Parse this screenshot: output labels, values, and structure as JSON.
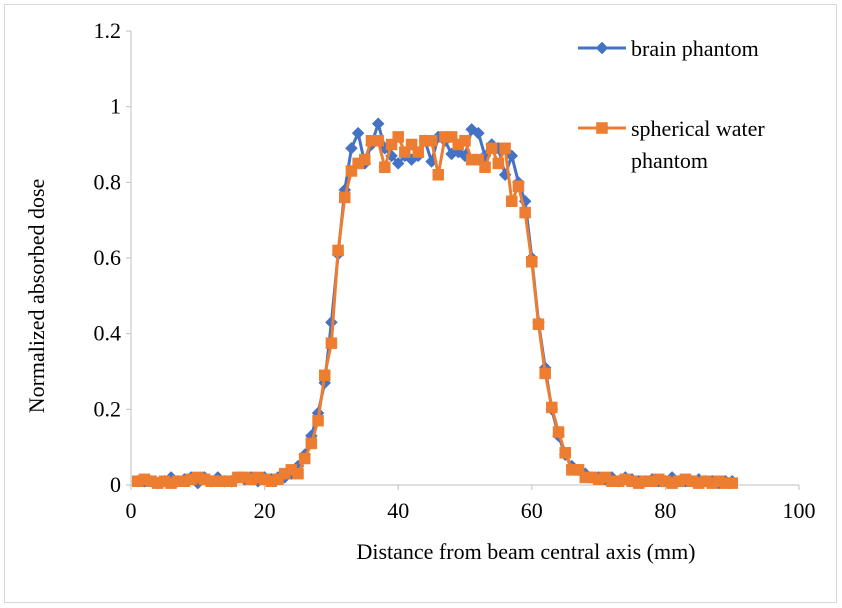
{
  "chart_data": {
    "type": "line",
    "title": "",
    "xlabel": "Distance from beam central axis (mm)",
    "ylabel": "Normalized absorbed dose",
    "xlim": [
      0,
      100
    ],
    "ylim": [
      0,
      1.2
    ],
    "xticks": [
      "0",
      "20",
      "40",
      "60",
      "80",
      "100"
    ],
    "yticks": [
      "0",
      "0.2",
      "0.4",
      "0.6",
      "0.8",
      "1",
      "1.2"
    ],
    "grid": false,
    "legend_position": "top-right",
    "series": [
      {
        "name": "brain phantom",
        "color": "#4472C4",
        "marker": "diamond",
        "points": [
          [
            1,
            0.01
          ],
          [
            2,
            0.01
          ],
          [
            3,
            0.01
          ],
          [
            4,
            0.005
          ],
          [
            5,
            0.01
          ],
          [
            6,
            0.02
          ],
          [
            7,
            0.01
          ],
          [
            8,
            0.015
          ],
          [
            9,
            0.02
          ],
          [
            10,
            0.005
          ],
          [
            11,
            0.02
          ],
          [
            12,
            0.01
          ],
          [
            13,
            0.02
          ],
          [
            14,
            0.01
          ],
          [
            15,
            0.01
          ],
          [
            16,
            0.02
          ],
          [
            17,
            0.015
          ],
          [
            18,
            0.02
          ],
          [
            19,
            0.01
          ],
          [
            20,
            0.02
          ],
          [
            21,
            0.015
          ],
          [
            22,
            0.02
          ],
          [
            23,
            0.02
          ],
          [
            24,
            0.03
          ],
          [
            25,
            0.05
          ],
          [
            26,
            0.08
          ],
          [
            27,
            0.13
          ],
          [
            28,
            0.19
          ],
          [
            29,
            0.27
          ],
          [
            30,
            0.43
          ],
          [
            31,
            0.61
          ],
          [
            32,
            0.78
          ],
          [
            33,
            0.89
          ],
          [
            34,
            0.93
          ],
          [
            35,
            0.85
          ],
          [
            36,
            0.9
          ],
          [
            37,
            0.955
          ],
          [
            38,
            0.89
          ],
          [
            39,
            0.87
          ],
          [
            40,
            0.85
          ],
          [
            41,
            0.87
          ],
          [
            42,
            0.86
          ],
          [
            43,
            0.87
          ],
          [
            44,
            0.91
          ],
          [
            45,
            0.855
          ],
          [
            46,
            0.92
          ],
          [
            47,
            0.91
          ],
          [
            48,
            0.875
          ],
          [
            49,
            0.88
          ],
          [
            50,
            0.87
          ],
          [
            51,
            0.94
          ],
          [
            52,
            0.93
          ],
          [
            53,
            0.87
          ],
          [
            54,
            0.9
          ],
          [
            55,
            0.89
          ],
          [
            56,
            0.82
          ],
          [
            57,
            0.87
          ],
          [
            58,
            0.8
          ],
          [
            59,
            0.75
          ],
          [
            60,
            0.6
          ],
          [
            61,
            0.43
          ],
          [
            62,
            0.31
          ],
          [
            63,
            0.2
          ],
          [
            64,
            0.13
          ],
          [
            65,
            0.08
          ],
          [
            66,
            0.05
          ],
          [
            67,
            0.04
          ],
          [
            68,
            0.03
          ],
          [
            69,
            0.02
          ],
          [
            70,
            0.02
          ],
          [
            71,
            0.015
          ],
          [
            72,
            0.02
          ],
          [
            73,
            0.01
          ],
          [
            74,
            0.02
          ],
          [
            75,
            0.015
          ],
          [
            76,
            0.01
          ],
          [
            77,
            0.01
          ],
          [
            78,
            0.015
          ],
          [
            79,
            0.01
          ],
          [
            80,
            0.01
          ],
          [
            81,
            0.02
          ],
          [
            82,
            0.01
          ],
          [
            83,
            0.01
          ],
          [
            84,
            0.01
          ],
          [
            85,
            0.015
          ],
          [
            86,
            0.01
          ],
          [
            87,
            0.01
          ],
          [
            88,
            0.005
          ],
          [
            89,
            0.01
          ],
          [
            90,
            0.01
          ]
        ]
      },
      {
        "name": "spherical water phantom",
        "color": "#ED7D31",
        "marker": "square",
        "points": [
          [
            1,
            0.01
          ],
          [
            2,
            0.015
          ],
          [
            3,
            0.01
          ],
          [
            4,
            0.005
          ],
          [
            5,
            0.01
          ],
          [
            6,
            0.005
          ],
          [
            7,
            0.01
          ],
          [
            8,
            0.01
          ],
          [
            9,
            0.015
          ],
          [
            10,
            0.02
          ],
          [
            11,
            0.015
          ],
          [
            12,
            0.01
          ],
          [
            13,
            0.01
          ],
          [
            14,
            0.01
          ],
          [
            15,
            0.01
          ],
          [
            16,
            0.02
          ],
          [
            17,
            0.02
          ],
          [
            18,
            0.015
          ],
          [
            19,
            0.02
          ],
          [
            20,
            0.015
          ],
          [
            21,
            0.01
          ],
          [
            22,
            0.015
          ],
          [
            23,
            0.03
          ],
          [
            24,
            0.04
          ],
          [
            25,
            0.03
          ],
          [
            26,
            0.07
          ],
          [
            27,
            0.11
          ],
          [
            28,
            0.17
          ],
          [
            29,
            0.29
          ],
          [
            30,
            0.375
          ],
          [
            31,
            0.62
          ],
          [
            32,
            0.76
          ],
          [
            33,
            0.83
          ],
          [
            34,
            0.85
          ],
          [
            35,
            0.86
          ],
          [
            36,
            0.91
          ],
          [
            37,
            0.91
          ],
          [
            38,
            0.84
          ],
          [
            39,
            0.9
          ],
          [
            40,
            0.92
          ],
          [
            41,
            0.88
          ],
          [
            42,
            0.9
          ],
          [
            43,
            0.88
          ],
          [
            44,
            0.91
          ],
          [
            45,
            0.91
          ],
          [
            46,
            0.82
          ],
          [
            47,
            0.92
          ],
          [
            48,
            0.92
          ],
          [
            49,
            0.9
          ],
          [
            50,
            0.91
          ],
          [
            51,
            0.86
          ],
          [
            52,
            0.86
          ],
          [
            53,
            0.84
          ],
          [
            54,
            0.89
          ],
          [
            55,
            0.85
          ],
          [
            56,
            0.89
          ],
          [
            57,
            0.75
          ],
          [
            58,
            0.79
          ],
          [
            59,
            0.72
          ],
          [
            60,
            0.59
          ],
          [
            61,
            0.425
          ],
          [
            62,
            0.295
          ],
          [
            63,
            0.205
          ],
          [
            64,
            0.14
          ],
          [
            65,
            0.085
          ],
          [
            66,
            0.04
          ],
          [
            67,
            0.04
          ],
          [
            68,
            0.02
          ],
          [
            69,
            0.02
          ],
          [
            70,
            0.015
          ],
          [
            71,
            0.02
          ],
          [
            72,
            0.01
          ],
          [
            73,
            0.01
          ],
          [
            74,
            0.015
          ],
          [
            75,
            0.01
          ],
          [
            76,
            0.005
          ],
          [
            77,
            0.01
          ],
          [
            78,
            0.01
          ],
          [
            79,
            0.015
          ],
          [
            80,
            0.01
          ],
          [
            81,
            0.005
          ],
          [
            82,
            0.01
          ],
          [
            83,
            0.015
          ],
          [
            84,
            0.01
          ],
          [
            85,
            0.005
          ],
          [
            86,
            0.01
          ],
          [
            87,
            0.005
          ],
          [
            88,
            0.01
          ],
          [
            89,
            0.005
          ],
          [
            90,
            0.005
          ]
        ]
      }
    ],
    "legend": {
      "brain": "brain phantom",
      "water_line1": "spherical water",
      "water_line2": "phantom"
    }
  }
}
